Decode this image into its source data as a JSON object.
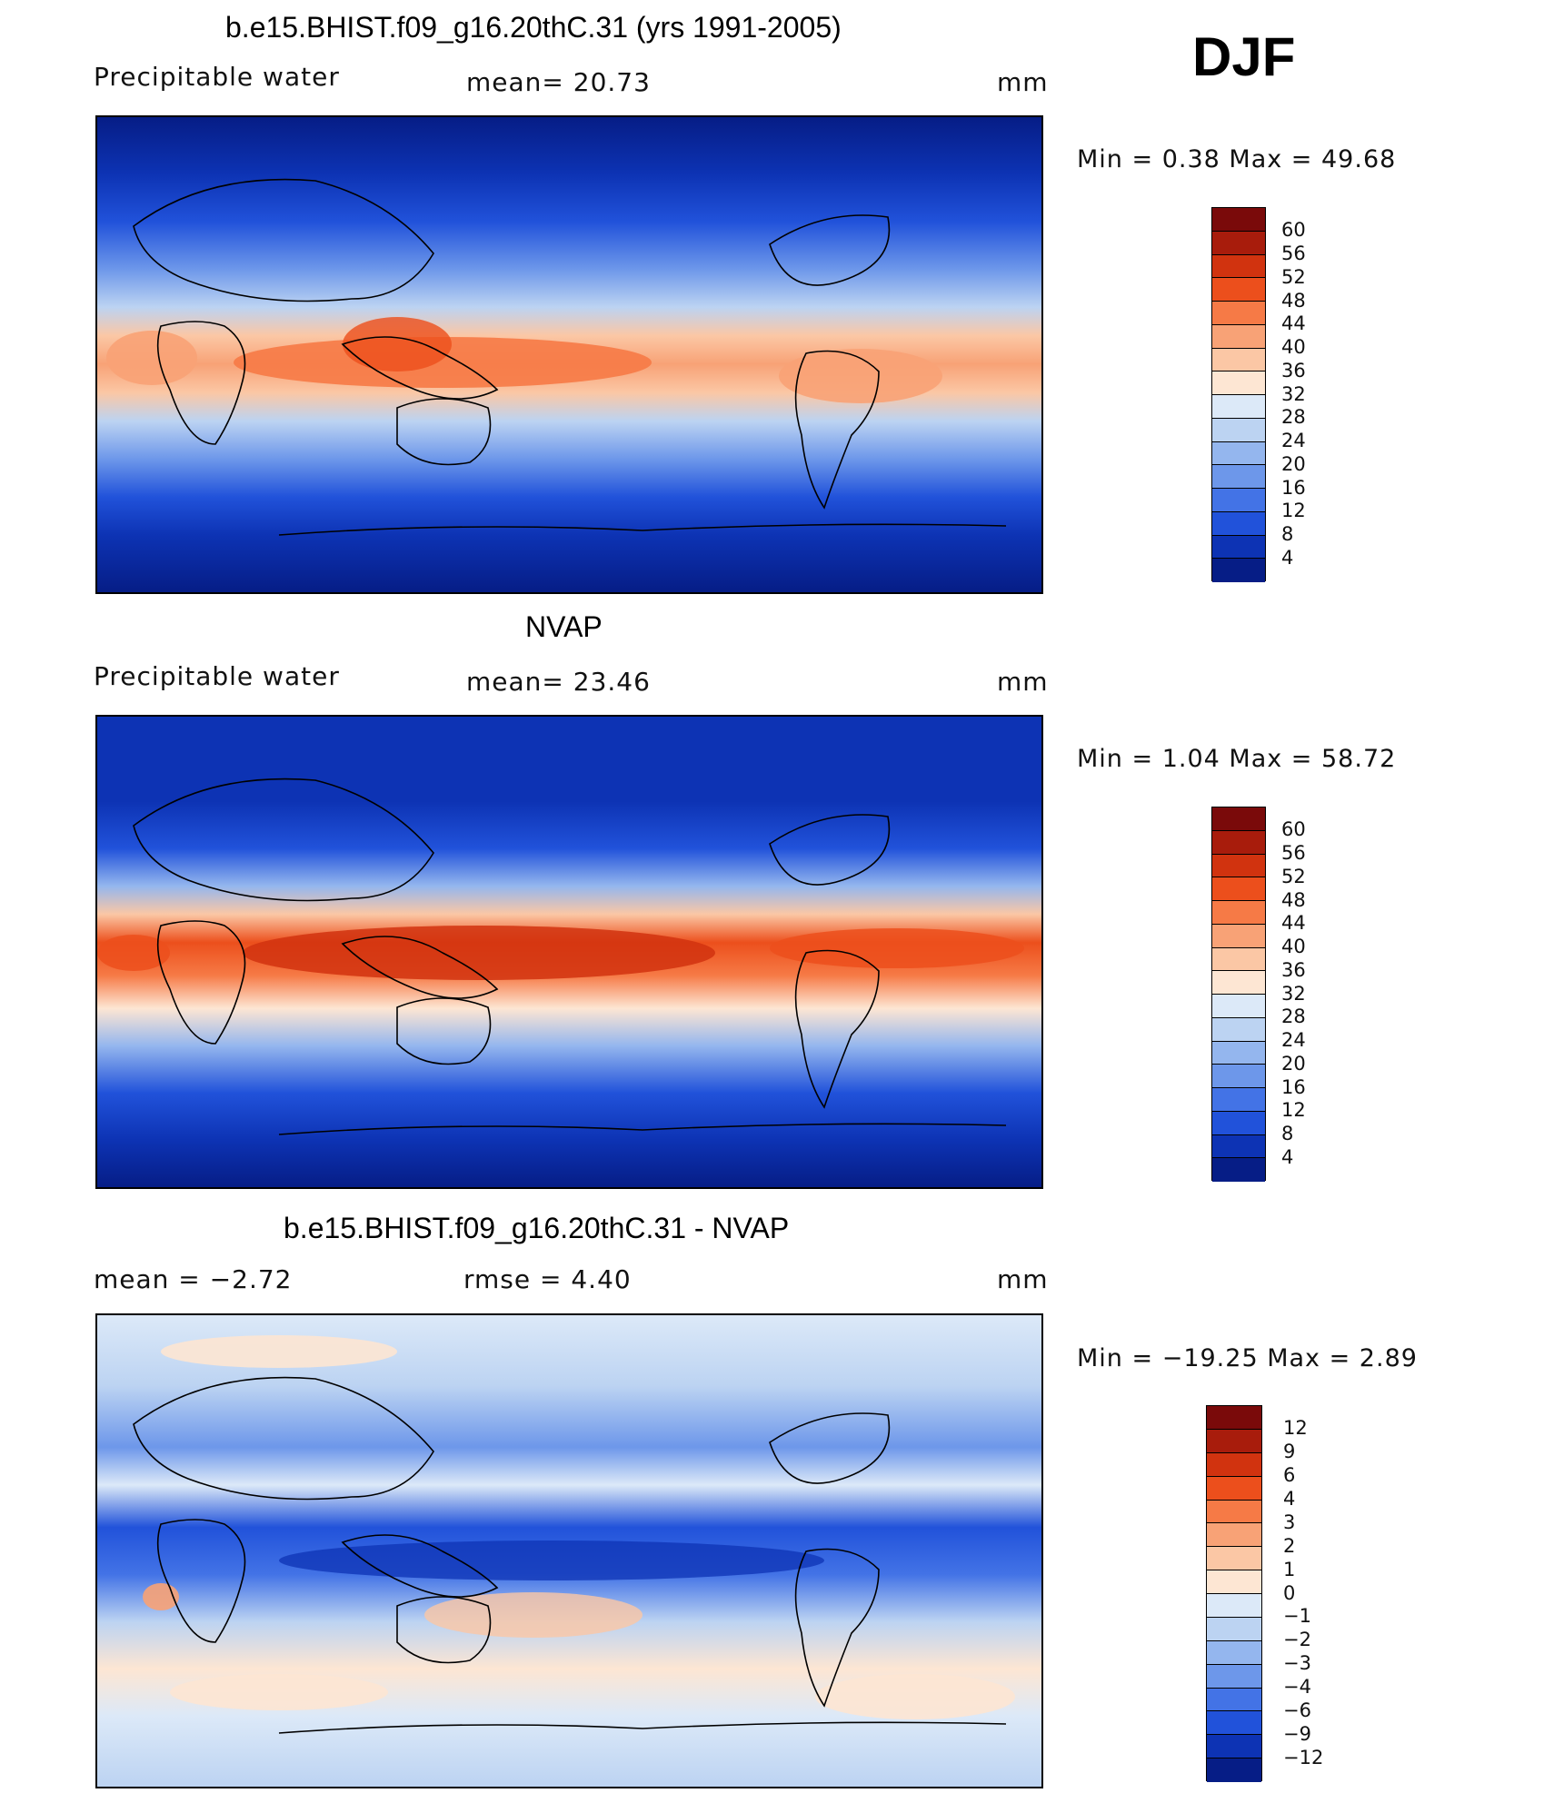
{
  "season": "DJF",
  "panels": [
    {
      "id": "model",
      "title": "b.e15.BHIST.f09_g16.20thC.31 (yrs 1991-2005)",
      "left_label": "Precipitable  water",
      "mid_label": "mean=   20.73",
      "units": "mm",
      "minmax": "Min  =     0.38  Max  =     49.68",
      "colorbar_ticks": [
        "60",
        "56",
        "52",
        "48",
        "44",
        "40",
        "36",
        "32",
        "28",
        "24",
        "20",
        "16",
        "12",
        "8",
        "4"
      ]
    },
    {
      "id": "obs",
      "title": "NVAP",
      "left_label": "Precipitable  water",
      "mid_label": "mean=   23.46",
      "units": "mm",
      "minmax": "Min  =     1.04  Max  =     58.72",
      "colorbar_ticks": [
        "60",
        "56",
        "52",
        "48",
        "44",
        "40",
        "36",
        "32",
        "28",
        "24",
        "20",
        "16",
        "12",
        "8",
        "4"
      ]
    },
    {
      "id": "diff",
      "title": "b.e15.BHIST.f09_g16.20thC.31 - NVAP",
      "left_label": "mean  =    −2.72",
      "mid_label": "rmse  =     4.40",
      "units": "mm",
      "minmax": "Min  =  −19.25  Max  =      2.89",
      "colorbar_ticks": [
        "12",
        "9",
        "6",
        "4",
        "3",
        "2",
        "1",
        "0",
        "−1",
        "−2",
        "−3",
        "−4",
        "−6",
        "−9",
        "−12"
      ]
    }
  ],
  "colors": {
    "abs_scale": [
      "#7a0a0a",
      "#a81c0c",
      "#d1330f",
      "#ec4f1c",
      "#f67a46",
      "#f8a276",
      "#fbc7a5",
      "#fde6d3",
      "#dce9f8",
      "#bcd3f2",
      "#94b6ee",
      "#6d97ea",
      "#4373e6",
      "#2152da",
      "#0d33b4",
      "#061d86"
    ],
    "diff_scale": [
      "#7a0a0a",
      "#a81c0c",
      "#d1330f",
      "#ec4f1c",
      "#f67a46",
      "#f8a276",
      "#fbc7a5",
      "#fde6d3",
      "#dce9f8",
      "#bcd3f2",
      "#94b6ee",
      "#6d97ea",
      "#4373e6",
      "#2152da",
      "#0d33b4",
      "#061d86"
    ]
  }
}
